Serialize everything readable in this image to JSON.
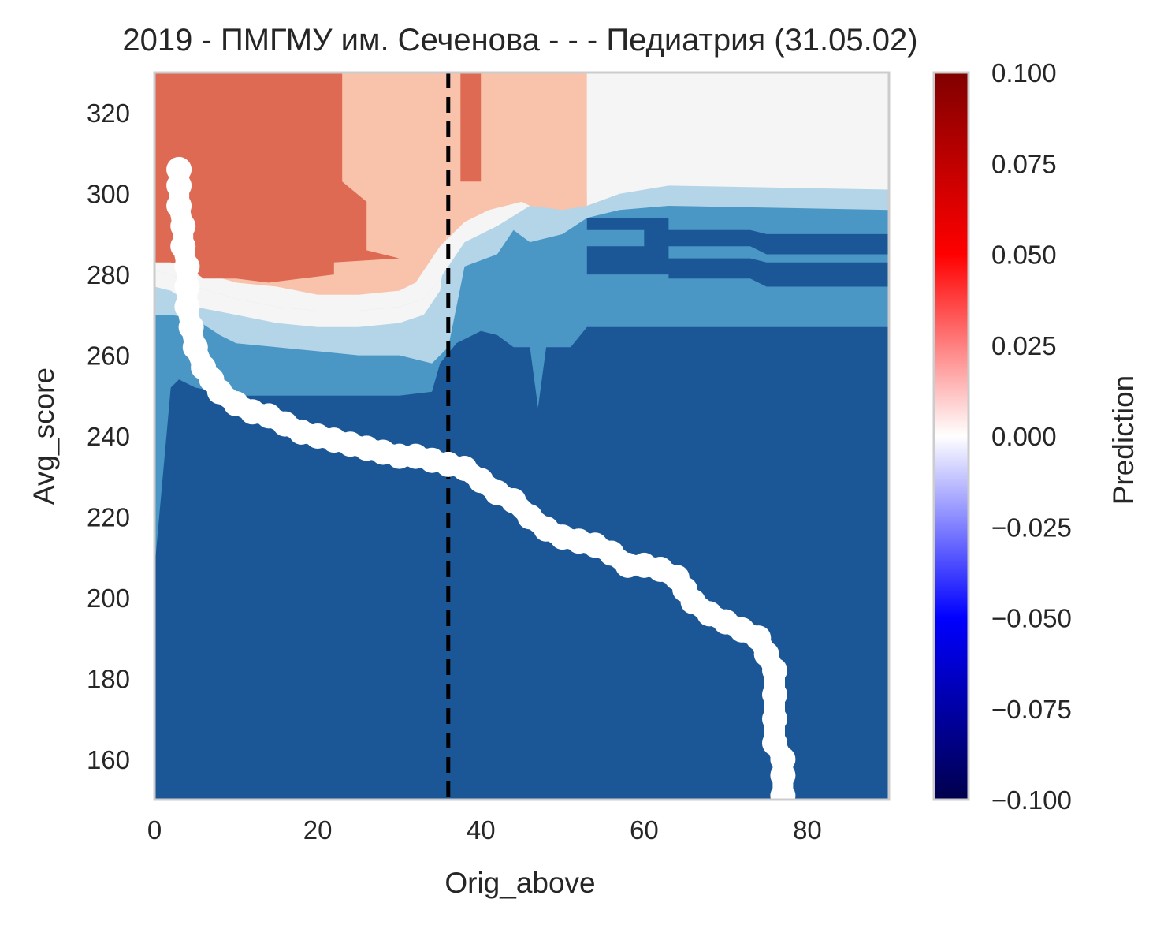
{
  "chart_data": {
    "type": "heatmap",
    "title": "2019 - ПМГМУ им. Сеченова - - - Педиатрия (31.05.02)",
    "xlabel": "Orig_above",
    "ylabel": "Avg_score",
    "xlim": [
      0,
      90
    ],
    "ylim": [
      150,
      330
    ],
    "x_ticks": [
      "0",
      "20",
      "40",
      "60",
      "80"
    ],
    "y_ticks": [
      "160",
      "180",
      "200",
      "220",
      "240",
      "260",
      "280",
      "300",
      "320"
    ],
    "grid": false,
    "colorbar": {
      "label": "Prediction",
      "range": [
        -0.1,
        0.1
      ],
      "ticks": [
        "0.100",
        "0.075",
        "0.050",
        "0.025",
        "0.000",
        "−0.025",
        "−0.050",
        "−0.075",
        "−0.100"
      ],
      "colormap": "seismic"
    },
    "level_colors": {
      "deep_blue": "#1b5796",
      "mid_blue": "#4a96c5",
      "light_blue": "#b4d4e7",
      "neutral": "#f5f5f5",
      "light_red": "#f9c3ab",
      "mid_red": "#de6a54",
      "dark_red": "#8b0a22"
    },
    "reference_line": {
      "x": 36,
      "style": "dashed",
      "color": "#000000"
    },
    "curve": {
      "name": "",
      "color": "#ffffff",
      "points": [
        [
          3,
          306
        ],
        [
          3,
          302
        ],
        [
          3,
          297
        ],
        [
          3.5,
          292
        ],
        [
          3.5,
          287
        ],
        [
          4,
          282
        ],
        [
          4,
          277
        ],
        [
          4,
          272
        ],
        [
          4.5,
          267
        ],
        [
          5,
          262
        ],
        [
          6,
          257
        ],
        [
          7,
          254
        ],
        [
          8,
          251
        ],
        [
          10,
          248
        ],
        [
          12,
          246
        ],
        [
          14,
          245
        ],
        [
          16,
          243
        ],
        [
          18,
          241
        ],
        [
          20,
          240
        ],
        [
          22,
          239
        ],
        [
          24,
          238
        ],
        [
          26,
          237
        ],
        [
          28,
          236
        ],
        [
          30,
          235
        ],
        [
          32,
          235
        ],
        [
          34,
          234
        ],
        [
          36,
          233
        ],
        [
          38,
          232
        ],
        [
          40,
          229
        ],
        [
          42,
          226
        ],
        [
          44,
          224
        ],
        [
          46,
          220
        ],
        [
          48,
          217
        ],
        [
          50,
          215
        ],
        [
          52,
          214
        ],
        [
          54,
          213
        ],
        [
          56,
          211
        ],
        [
          58,
          208
        ],
        [
          60,
          208
        ],
        [
          62,
          207
        ],
        [
          64,
          205
        ],
        [
          65,
          202
        ],
        [
          66,
          199
        ],
        [
          68,
          196
        ],
        [
          70,
          194
        ],
        [
          72,
          192
        ],
        [
          74,
          190
        ],
        [
          75,
          186
        ],
        [
          76,
          182
        ],
        [
          76,
          176
        ],
        [
          76,
          170
        ],
        [
          76,
          164
        ],
        [
          77,
          160
        ],
        [
          77,
          156
        ],
        [
          77,
          151
        ]
      ]
    }
  }
}
